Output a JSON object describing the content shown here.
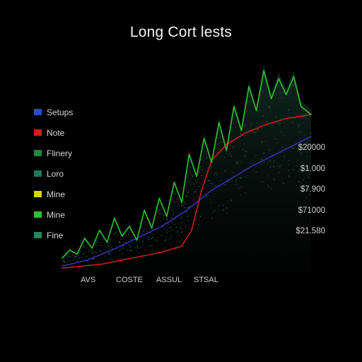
{
  "chart_data": {
    "type": "line",
    "title": "Long Cort lests",
    "xlabel": "",
    "ylabel": "",
    "categories": [
      "AVS",
      "COSTE",
      "ASSUL",
      "STSAL"
    ],
    "legend": {
      "placement": "left",
      "entries": [
        {
          "name": "Setups",
          "color": "#2a4bd6"
        },
        {
          "name": "Note",
          "color": "#d41c1c"
        },
        {
          "name": "Flinery",
          "color": "#1e8a3c"
        },
        {
          "name": "Loro",
          "color": "#1f7a5a"
        },
        {
          "name": "Mine",
          "color": "#d4d41c"
        },
        {
          "name": "Mine",
          "color": "#2fbf2f"
        },
        {
          "name": "Fine",
          "color": "#1d8a5a"
        }
      ]
    },
    "price_labels": [
      "$20000",
      "$1.000",
      "$7.900",
      "$71000",
      "$21.580"
    ],
    "series": [
      {
        "name": "Setups",
        "color": "#3a2fb8",
        "points": [
          [
            0.0,
            0.02
          ],
          [
            0.1,
            0.05
          ],
          [
            0.2,
            0.1
          ],
          [
            0.3,
            0.16
          ],
          [
            0.4,
            0.22
          ],
          [
            0.5,
            0.3
          ],
          [
            0.6,
            0.4
          ],
          [
            0.68,
            0.46
          ],
          [
            0.76,
            0.52
          ],
          [
            0.84,
            0.57
          ],
          [
            0.92,
            0.62
          ],
          [
            1.0,
            0.67
          ]
        ]
      },
      {
        "name": "Note",
        "color": "#d41c1c",
        "points": [
          [
            0.0,
            0.01
          ],
          [
            0.08,
            0.02
          ],
          [
            0.16,
            0.03
          ],
          [
            0.24,
            0.05
          ],
          [
            0.32,
            0.07
          ],
          [
            0.4,
            0.09
          ],
          [
            0.48,
            0.12
          ],
          [
            0.52,
            0.2
          ],
          [
            0.56,
            0.4
          ],
          [
            0.6,
            0.55
          ],
          [
            0.66,
            0.63
          ],
          [
            0.74,
            0.69
          ],
          [
            0.82,
            0.73
          ],
          [
            0.9,
            0.76
          ],
          [
            1.0,
            0.78
          ]
        ]
      },
      {
        "name": "Mine",
        "color": "#2fbf2f",
        "points": [
          [
            0.0,
            0.06
          ],
          [
            0.03,
            0.1
          ],
          [
            0.06,
            0.08
          ],
          [
            0.09,
            0.16
          ],
          [
            0.12,
            0.11
          ],
          [
            0.15,
            0.2
          ],
          [
            0.18,
            0.14
          ],
          [
            0.21,
            0.26
          ],
          [
            0.24,
            0.17
          ],
          [
            0.27,
            0.22
          ],
          [
            0.3,
            0.15
          ],
          [
            0.33,
            0.3
          ],
          [
            0.36,
            0.21
          ],
          [
            0.39,
            0.36
          ],
          [
            0.42,
            0.27
          ],
          [
            0.45,
            0.44
          ],
          [
            0.48,
            0.34
          ],
          [
            0.51,
            0.58
          ],
          [
            0.54,
            0.47
          ],
          [
            0.57,
            0.66
          ],
          [
            0.6,
            0.54
          ],
          [
            0.63,
            0.74
          ],
          [
            0.66,
            0.6
          ],
          [
            0.69,
            0.82
          ],
          [
            0.72,
            0.7
          ],
          [
            0.75,
            0.92
          ],
          [
            0.78,
            0.8
          ],
          [
            0.81,
            1.0
          ],
          [
            0.84,
            0.86
          ],
          [
            0.87,
            0.96
          ],
          [
            0.9,
            0.88
          ],
          [
            0.93,
            0.97
          ],
          [
            0.96,
            0.82
          ],
          [
            1.0,
            0.78
          ]
        ]
      }
    ],
    "grid": false
  }
}
